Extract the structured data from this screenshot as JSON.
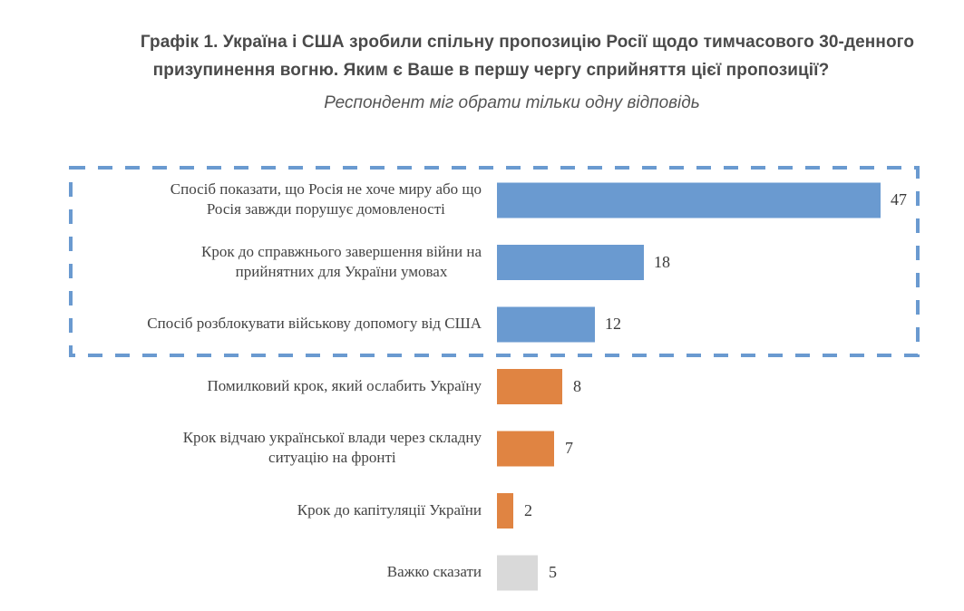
{
  "header": {
    "title_line1": "Графік 1. Україна і США зробили спільну пропозицію Росії щодо тимчасового 30-денного",
    "title_line2": "призупинення вогню. Яким є Ваше в першу чергу сприйняття цієї пропозиції?",
    "subtitle": "Респондент міг обрати тільки одну відповідь"
  },
  "colors": {
    "positive": "#6a9ad0",
    "negative": "#e08442",
    "neutral": "#d9d9d9",
    "highlight_border": "#6a9ad0"
  },
  "chart_data": {
    "type": "bar",
    "orientation": "horizontal",
    "title": "Графік 1. Україна і США зробили спільну пропозицію Росії щодо тимчасового 30-денного призупинення вогню. Яким є Ваше в першу чергу сприйняття цієї пропозиції?",
    "subtitle": "Респондент міг обрати тільки одну відповідь",
    "xlabel": "",
    "ylabel": "",
    "xlim": [
      0,
      47
    ],
    "grid": false,
    "legend": "none",
    "categories": [
      [
        "Спосіб показати, що Росія не хоче миру або що",
        "Росія завжди порушує домовленості"
      ],
      [
        "Крок до справжнього завершення війни на",
        "прийнятних для України умовах"
      ],
      [
        "Спосіб розблокувати військову допомогу від США"
      ],
      [
        "Помилковий крок, який ослабить Україну"
      ],
      [
        "Крок відчаю української влади через складну",
        "ситуацію на фронті"
      ],
      [
        "Крок до капітуляції України"
      ],
      [
        "Важко сказати"
      ]
    ],
    "values": [
      47,
      18,
      12,
      8,
      7,
      2,
      5
    ],
    "value_labels": [
      "47",
      "18",
      "12",
      "8",
      "7",
      "2",
      "5"
    ],
    "groups": [
      "positive",
      "positive",
      "positive",
      "negative",
      "negative",
      "negative",
      "neutral"
    ],
    "highlighted_group": "positive"
  }
}
